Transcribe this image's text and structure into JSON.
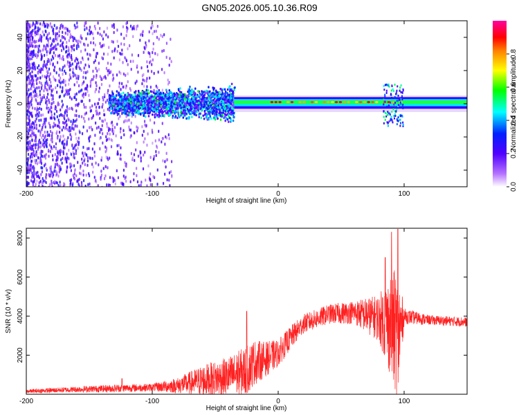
{
  "title": "GN05.2026.005.10.36.R09",
  "chart_data": [
    {
      "type": "heatmap",
      "name": "spectrogram",
      "xlabel": "Height of straight line (km)",
      "ylabel": "Frequency (Hz)",
      "xlim": [
        -200,
        150
      ],
      "ylim": [
        -50,
        50
      ],
      "xticks": [
        -200,
        -100,
        0,
        100
      ],
      "xtick_labels": [
        "-200",
        "-100",
        "0",
        "100"
      ],
      "yticks": [
        -40,
        -20,
        0,
        20,
        40
      ],
      "ytick_labels": [
        "-40",
        "-20",
        "0",
        "20",
        "40"
      ],
      "colorbar": {
        "label": "Normalized spectral amplitude",
        "range": [
          0,
          1
        ],
        "ticks": [
          0.0,
          0.2,
          0.4,
          0.6,
          0.8
        ],
        "tick_labels": [
          "0.0",
          "0.2",
          "0.4",
          "0.6",
          "0.8"
        ],
        "colormap": [
          "#ffffff",
          "#8a00ff",
          "#0000ff",
          "#00ffff",
          "#00ff00",
          "#ffff00",
          "#ff0000",
          "#ff00ff"
        ]
      },
      "features": [
        {
          "region": "scatter noise",
          "x_range": [
            -200,
            -90
          ],
          "freq_range": [
            -50,
            50
          ]
        },
        {
          "region": "broad band",
          "x_range": [
            -135,
            -35
          ],
          "freq_range": [
            -10,
            12
          ]
        },
        {
          "region": "narrow line",
          "x_range": [
            -35,
            150
          ],
          "freq_center": 1,
          "freq_halfwidth": 3
        },
        {
          "region": "distortion",
          "x_range": [
            85,
            100
          ],
          "freq_range": [
            -13,
            15
          ]
        }
      ]
    },
    {
      "type": "line",
      "name": "snr",
      "xlabel": "Height of straight line (km)",
      "ylabel": "SNR (10 * v/v)",
      "xlim": [
        -200,
        150
      ],
      "ylim": [
        0,
        8500
      ],
      "xticks": [
        -200,
        -100,
        0,
        100
      ],
      "xtick_labels": [
        "-200",
        "-100",
        "0",
        "100"
      ],
      "yticks": [
        2000,
        4000,
        6000,
        8000
      ],
      "ytick_labels": [
        "2000",
        "4000",
        "6000",
        "8000"
      ],
      "color": "#ff2020",
      "envelope": {
        "x": [
          -200,
          -160,
          -130,
          -100,
          -80,
          -60,
          -40,
          -25,
          -20,
          -10,
          0,
          10,
          20,
          40,
          60,
          80,
          90,
          95,
          100,
          120,
          150
        ],
        "mean": [
          150,
          250,
          300,
          350,
          450,
          700,
          900,
          1200,
          1600,
          1800,
          2100,
          2900,
          3600,
          4100,
          4200,
          3900,
          3500,
          3000,
          4000,
          3800,
          3700
        ],
        "spread": [
          100,
          150,
          200,
          200,
          400,
          800,
          1000,
          1300,
          1200,
          900,
          700,
          600,
          500,
          500,
          600,
          1200,
          2800,
          3500,
          400,
          250,
          250
        ]
      },
      "peaks": [
        {
          "x": -124,
          "y": 800
        },
        {
          "x": -25,
          "y": 4250
        },
        {
          "x": 85,
          "y": 7000
        },
        {
          "x": 90,
          "y": 8300
        },
        {
          "x": 95,
          "y": 8450
        }
      ]
    }
  ]
}
